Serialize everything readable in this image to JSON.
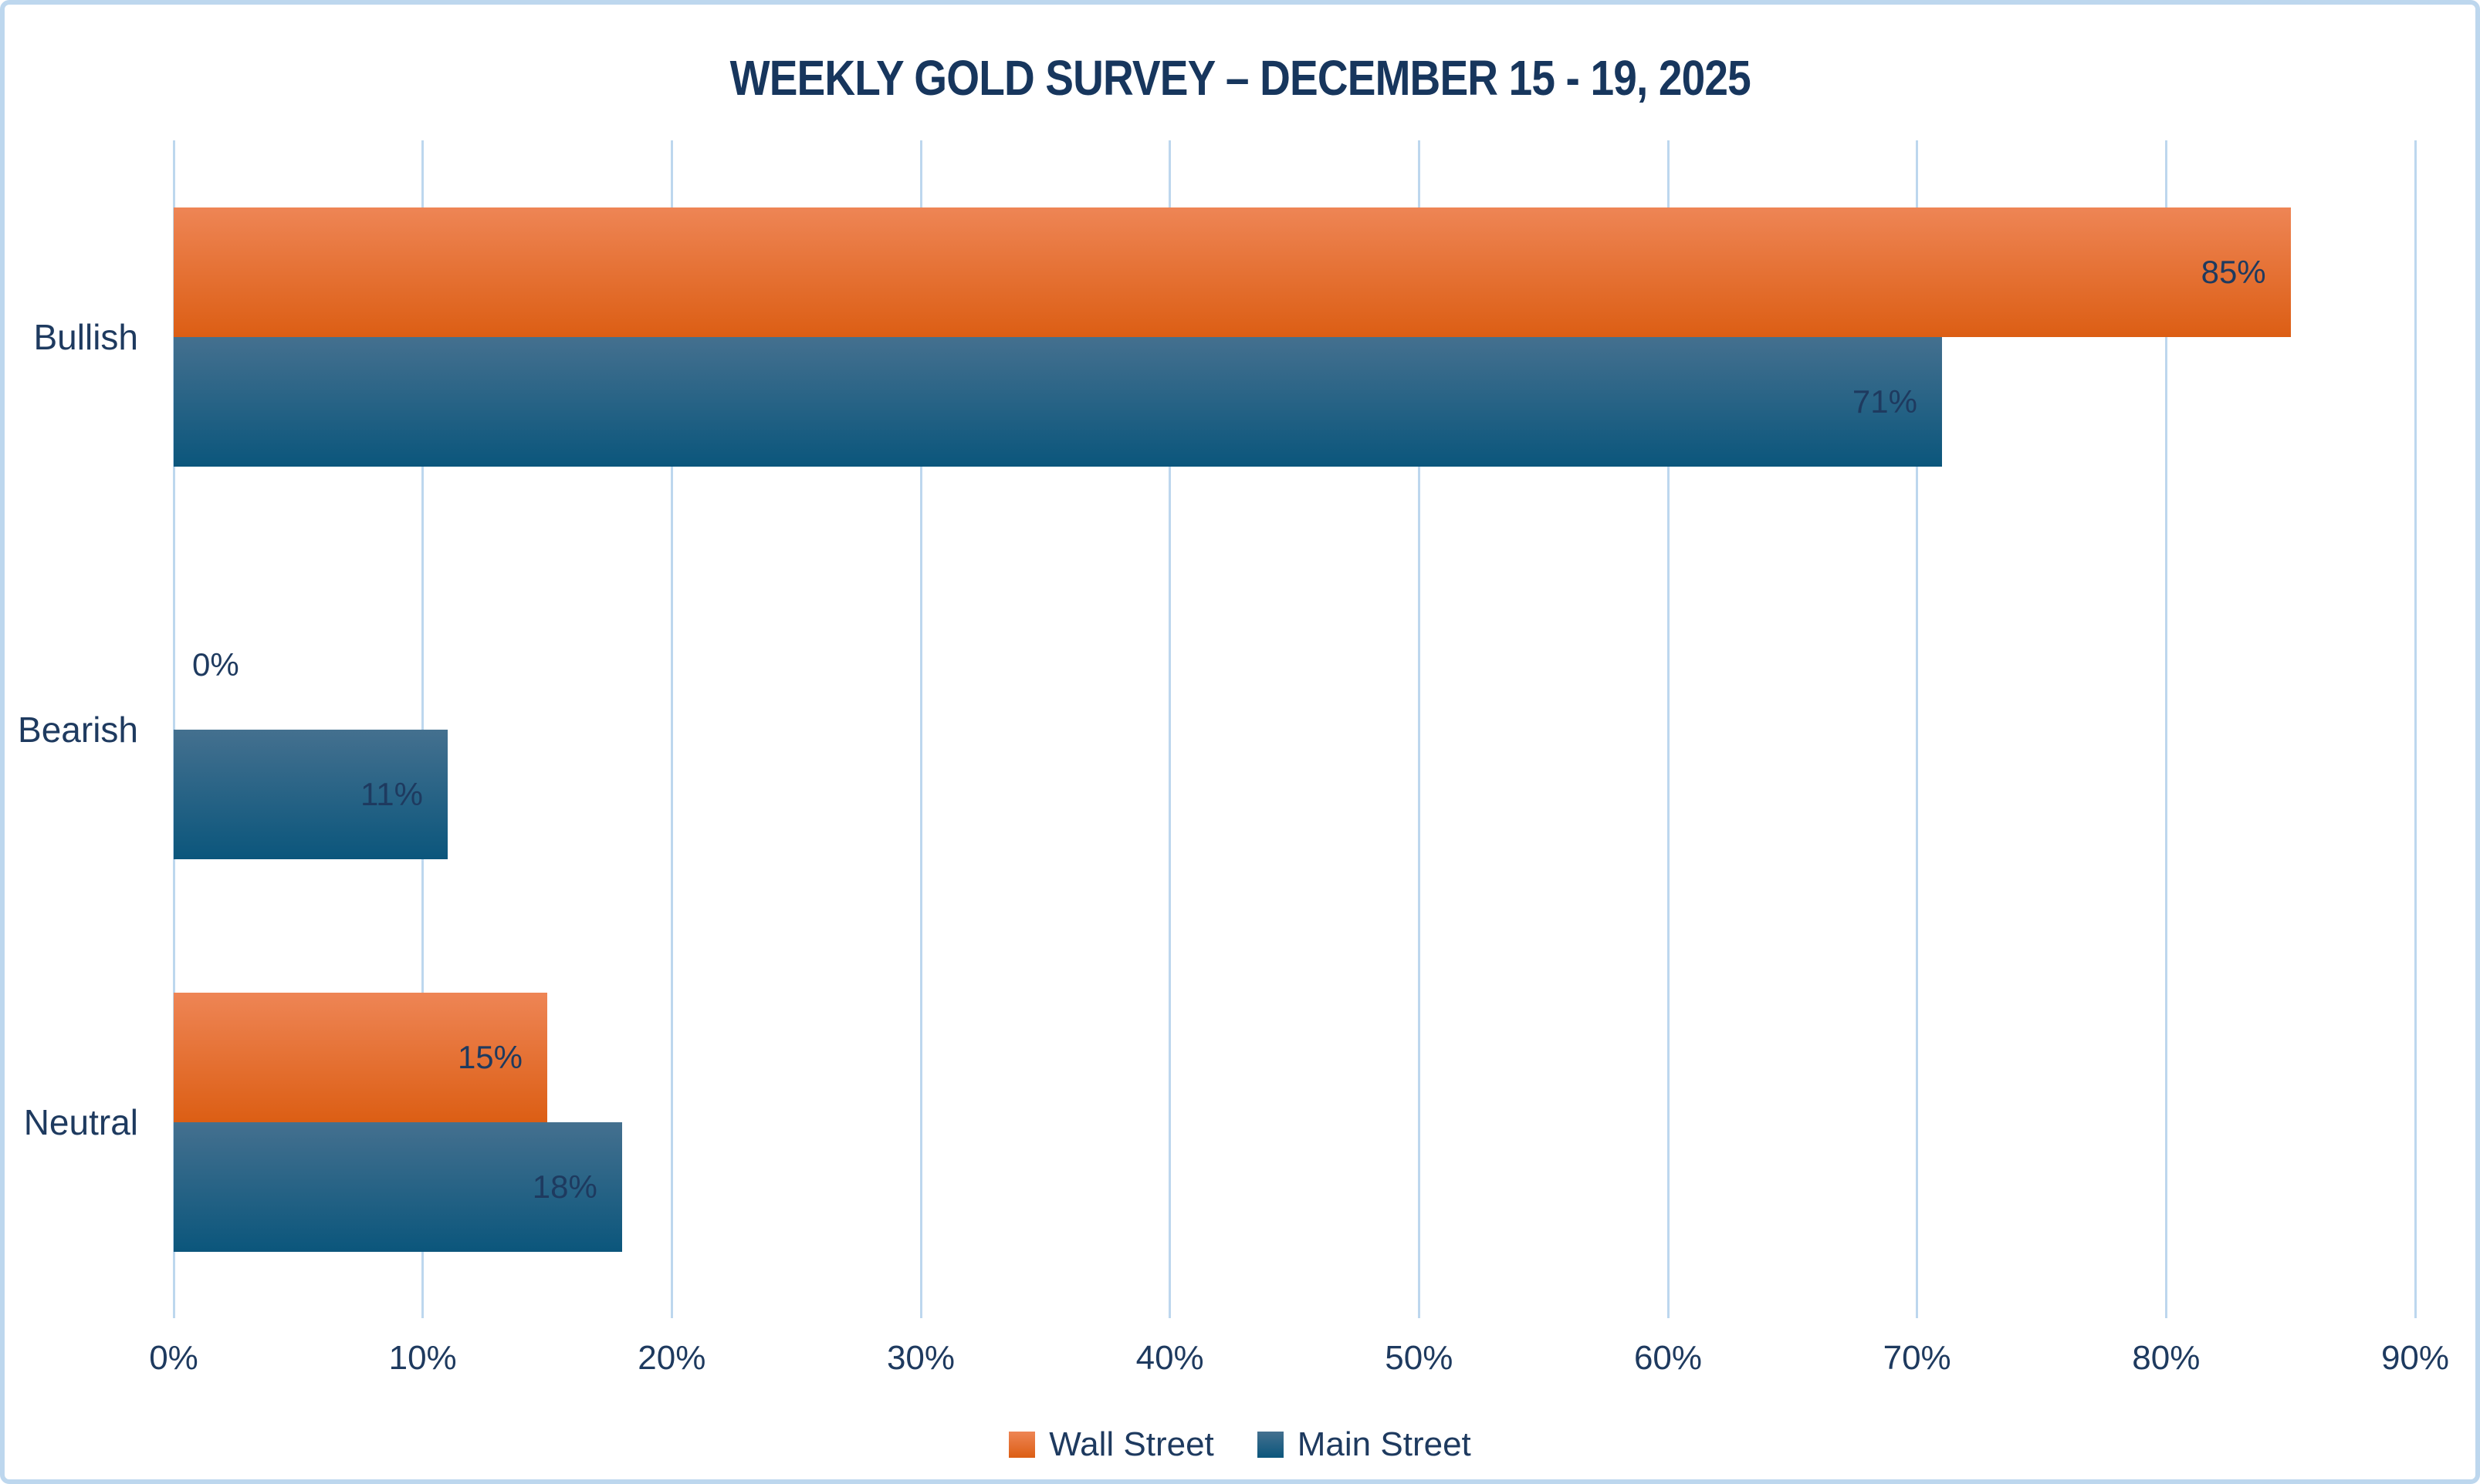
{
  "title": "WEEKLY GOLD SURVEY – DECEMBER 15 - 19, 2025",
  "chart_data": {
    "type": "bar",
    "orientation": "horizontal",
    "title": "WEEKLY GOLD SURVEY – DECEMBER 15 - 19, 2025",
    "categories": [
      "Bullish",
      "Bearish",
      "Neutral"
    ],
    "series": [
      {
        "name": "Wall Street",
        "values": [
          85,
          0,
          15
        ],
        "labels": [
          "85%",
          "0%",
          "15%"
        ],
        "gradient_top": "#EE8555",
        "gradient_bottom": "#DC5E14"
      },
      {
        "name": "Main Street",
        "values": [
          71,
          11,
          18
        ],
        "labels": [
          "71%",
          "11%",
          "18%"
        ],
        "gradient_top": "#44708F",
        "gradient_bottom": "#0B567C"
      }
    ],
    "xlim": [
      0,
      90
    ],
    "x_ticks": [
      "0%",
      "10%",
      "20%",
      "30%",
      "40%",
      "50%",
      "60%",
      "70%",
      "80%",
      "90%"
    ],
    "grid": true,
    "legend_position": "bottom",
    "legend": [
      "Wall Street",
      "Main Street"
    ]
  },
  "colors": {
    "text": "#1E3A5F",
    "title": "#17365D",
    "gridline": "#BDD7EE",
    "frame_border": "#BDD7EE",
    "background": "#FFFFFF"
  }
}
